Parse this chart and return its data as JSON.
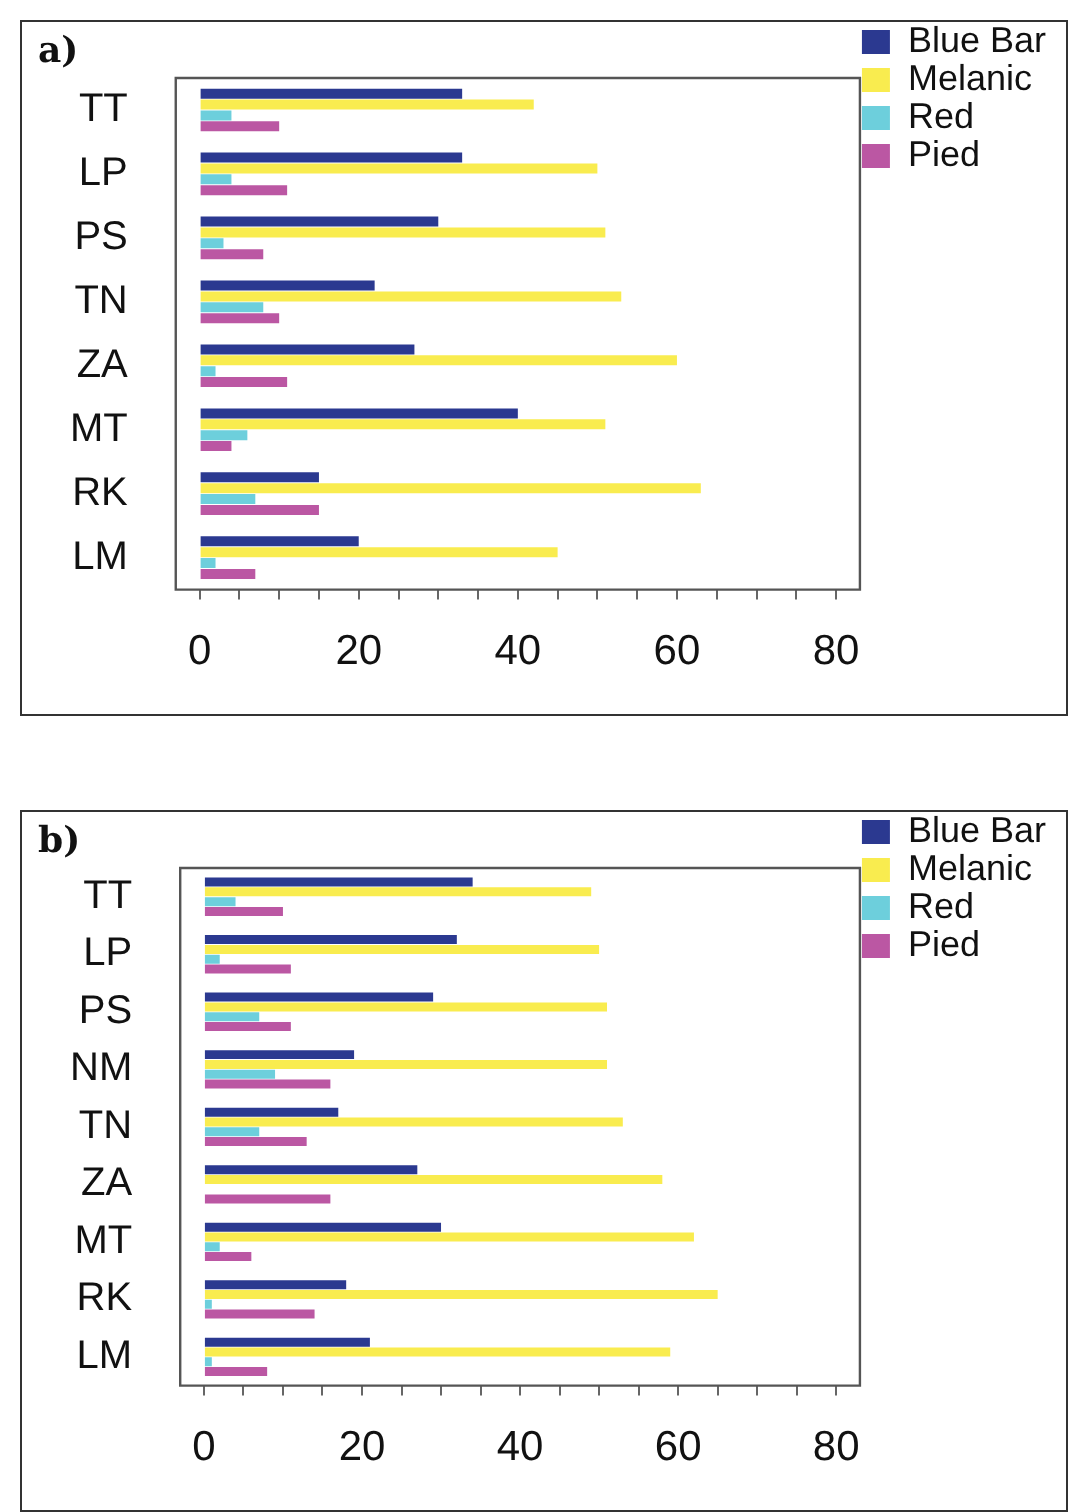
{
  "chart_data": [
    {
      "type": "bar",
      "title": "a)",
      "orientation": "horizontal",
      "legend": "right",
      "grid": false,
      "categories": [
        "TT",
        "LP",
        "PS",
        "TN",
        "ZA",
        "MT",
        "RK",
        "LM"
      ],
      "series": [
        {
          "name": "Blue Bar",
          "color": "#2b3990",
          "values": [
            33,
            33,
            30,
            22,
            27,
            40,
            15,
            20
          ]
        },
        {
          "name": "Melanic",
          "color": "#f9ec4f",
          "values": [
            42,
            50,
            51,
            53,
            60,
            51,
            63,
            45
          ]
        },
        {
          "name": "Red",
          "color": "#6dcfdc",
          "values": [
            4,
            4,
            3,
            8,
            2,
            6,
            7,
            2
          ]
        },
        {
          "name": "Pied",
          "color": "#bb57a3",
          "values": [
            10,
            11,
            8,
            10,
            11,
            4,
            15,
            7
          ]
        }
      ],
      "xlim": [
        -3,
        83
      ],
      "xticks": [
        0,
        {
          "value": 5,
          "label": null
        },
        {
          "value": 10,
          "label": null
        },
        {
          "value": 15,
          "label": null
        },
        20,
        {
          "value": 25,
          "label": null
        },
        {
          "value": 30,
          "label": null
        },
        {
          "value": 35,
          "label": null
        },
        40,
        {
          "value": 45,
          "label": null
        },
        {
          "value": 50,
          "label": null
        },
        {
          "value": 55,
          "label": null
        },
        60,
        {
          "value": 65,
          "label": null
        },
        {
          "value": 70,
          "label": null
        },
        {
          "value": 75,
          "label": null
        },
        80
      ]
    },
    {
      "type": "bar",
      "title": "b)",
      "orientation": "horizontal",
      "legend": "right",
      "grid": false,
      "categories": [
        "TT",
        "LP",
        "PS",
        "NM",
        "TN",
        "ZA",
        "MT",
        "RK",
        "LM"
      ],
      "series": [
        {
          "name": "Blue Bar",
          "color": "#2b3990",
          "values": [
            34,
            32,
            29,
            19,
            17,
            27,
            30,
            18,
            21
          ]
        },
        {
          "name": "Melanic",
          "color": "#f9ec4f",
          "values": [
            49,
            50,
            51,
            51,
            53,
            58,
            62,
            65,
            59
          ]
        },
        {
          "name": "Red",
          "color": "#6dcfdc",
          "values": [
            4,
            2,
            7,
            9,
            7,
            0,
            2,
            1,
            1
          ]
        },
        {
          "name": "Pied",
          "color": "#bb57a3",
          "values": [
            10,
            11,
            11,
            16,
            13,
            16,
            6,
            14,
            8
          ]
        }
      ],
      "xlim": [
        -3,
        83
      ],
      "xticks": [
        0,
        {
          "value": 5,
          "label": null
        },
        {
          "value": 10,
          "label": null
        },
        {
          "value": 15,
          "label": null
        },
        20,
        {
          "value": 25,
          "label": null
        },
        {
          "value": 30,
          "label": null
        },
        {
          "value": 35,
          "label": null
        },
        40,
        {
          "value": 45,
          "label": null
        },
        {
          "value": 50,
          "label": null
        },
        {
          "value": 55,
          "label": null
        },
        60,
        {
          "value": 65,
          "label": null
        },
        {
          "value": 70,
          "label": null
        },
        {
          "value": 75,
          "label": null
        },
        80
      ]
    }
  ]
}
